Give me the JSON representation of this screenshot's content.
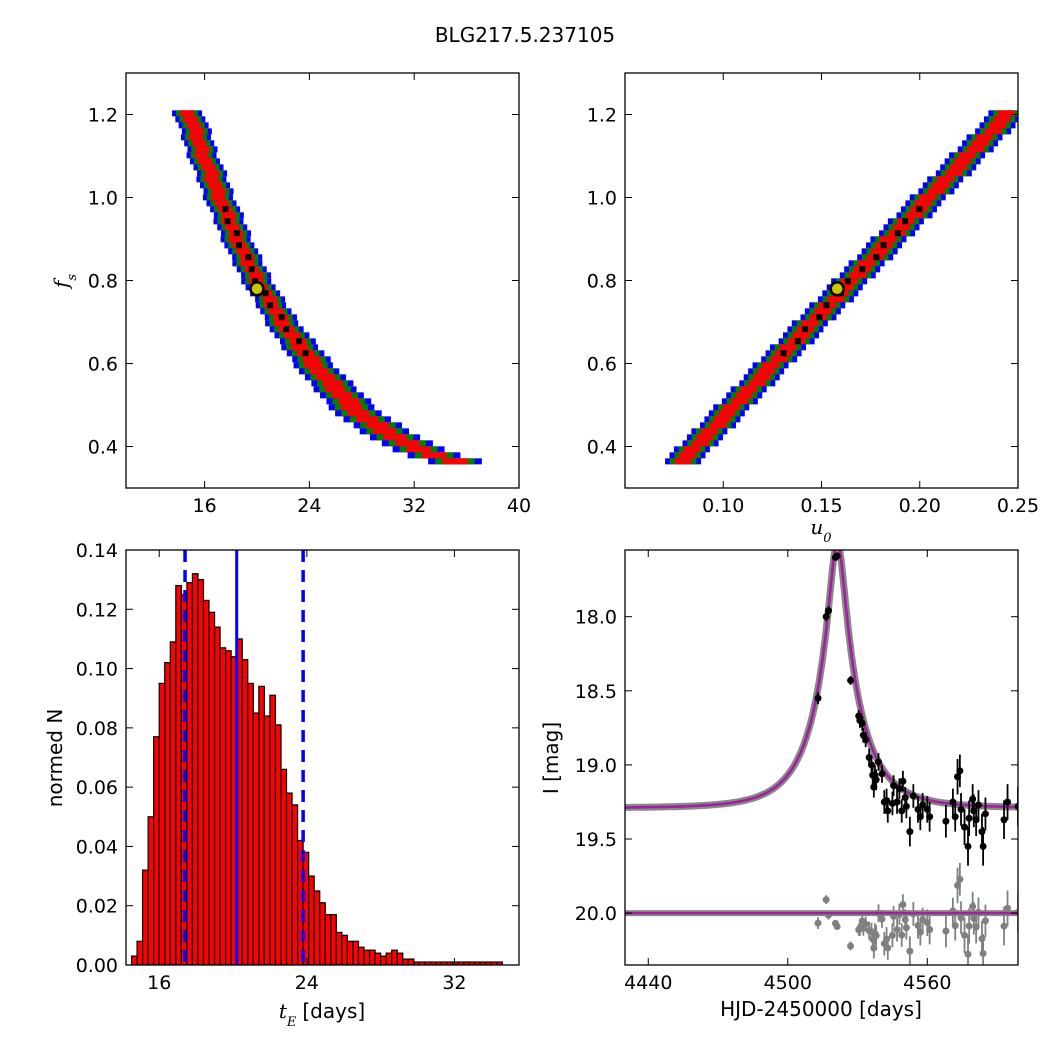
{
  "title": "BLG217.5.237105",
  "colors": {
    "blue": "#0000ff",
    "green": "#008000",
    "red": "#ff0000",
    "black": "#000000",
    "model": "#a020a0",
    "resid": "#808080",
    "marker_edge": "#000000",
    "marker_face": "#c8c800"
  },
  "chart_data": [
    {
      "id": "tE_vs_fs",
      "type": "heatmap",
      "xlim": [
        10,
        40
      ],
      "ylim": [
        0.3,
        1.3
      ],
      "xticks": [
        "16",
        "24",
        "32",
        "40"
      ],
      "xtick_values": [
        16,
        24,
        32,
        40
      ],
      "yticks": [
        "0.4",
        "0.6",
        "0.8",
        "1.0",
        "1.2"
      ],
      "ytick_values": [
        0.4,
        0.6,
        0.8,
        1.0,
        1.2
      ],
      "xlabel": "",
      "ylabel": "f_s",
      "best_fit": {
        "x": 20.0,
        "y": 0.78
      },
      "relation": {
        "curve": [
          [
            14.8,
            1.21
          ],
          [
            16.0,
            1.1
          ],
          [
            17.5,
            0.98
          ],
          [
            19.0,
            0.87
          ],
          [
            20.5,
            0.78
          ],
          [
            22.5,
            0.68
          ],
          [
            25.0,
            0.58
          ],
          [
            28.0,
            0.48
          ],
          [
            31.0,
            0.42
          ],
          [
            34.0,
            0.38
          ],
          [
            36.5,
            0.36
          ]
        ],
        "y_from": 0.36,
        "y_to": 1.21
      }
    },
    {
      "id": "u0_vs_fs",
      "type": "heatmap",
      "xlim": [
        0.05,
        0.25
      ],
      "ylim": [
        0.3,
        1.3
      ],
      "xticks": [
        "0.10",
        "0.15",
        "0.20",
        "0.25"
      ],
      "xtick_values": [
        0.1,
        0.15,
        0.2,
        0.25
      ],
      "yticks": [
        "0.4",
        "0.6",
        "0.8",
        "1.0",
        "1.2"
      ],
      "ytick_values": [
        0.4,
        0.6,
        0.8,
        1.0,
        1.2
      ],
      "xlabel": "u_0",
      "ylabel": "",
      "best_fit": {
        "x": 0.158,
        "y": 0.78
      },
      "relation": {
        "curve": [
          [
            0.077,
            0.36
          ],
          [
            0.245,
            1.21
          ]
        ],
        "y_from": 0.36,
        "y_to": 1.21
      }
    },
    {
      "id": "tE_histogram",
      "type": "bar",
      "xlim": [
        14.2,
        35.5
      ],
      "ylim": [
        0,
        0.14
      ],
      "xticks": [
        "16",
        "24",
        "32"
      ],
      "xtick_values": [
        16,
        24,
        32
      ],
      "yticks": [
        "0.00",
        "0.02",
        "0.04",
        "0.06",
        "0.08",
        "0.10",
        "0.12",
        "0.14"
      ],
      "ytick_values": [
        0,
        0.02,
        0.04,
        0.06,
        0.08,
        0.1,
        0.12,
        0.14
      ],
      "xlabel": "t_E",
      "xlabel_unit": "[days]",
      "ylabel": "normed N",
      "bin_start": 14.5,
      "bin_width": 0.3,
      "values": [
        0.003,
        0.008,
        0.032,
        0.05,
        0.077,
        0.095,
        0.102,
        0.109,
        0.128,
        0.125,
        0.129,
        0.132,
        0.13,
        0.123,
        0.119,
        0.114,
        0.107,
        0.106,
        0.104,
        0.11,
        0.103,
        0.095,
        0.085,
        0.094,
        0.084,
        0.091,
        0.081,
        0.066,
        0.058,
        0.054,
        0.042,
        0.038,
        0.03,
        0.025,
        0.021,
        0.017,
        0.017,
        0.011,
        0.01,
        0.008,
        0.008,
        0.006,
        0.005,
        0.005,
        0.004,
        0.003,
        0.004,
        0.005,
        0.004,
        0.002,
        0.002,
        0.001,
        0.001,
        0.001,
        0.001,
        0.001,
        0.001,
        0.001,
        0.001,
        0.001,
        0.001,
        0.001,
        0.001,
        0.001,
        0.001,
        0.001,
        0.001
      ],
      "median": 20.2,
      "interval": [
        17.4,
        23.8
      ]
    },
    {
      "id": "light_curve",
      "type": "scatter",
      "xlim": [
        4430,
        4599
      ],
      "ylim": [
        20.35,
        17.55
      ],
      "xticks": [
        "4440",
        "4500",
        "4560"
      ],
      "xtick_values": [
        4440,
        4500,
        4560
      ],
      "yticks": [
        "18.0",
        "18.5",
        "19.0",
        "19.5",
        "20.0"
      ],
      "ytick_values": [
        18.0,
        18.5,
        19.0,
        19.5,
        20.0
      ],
      "xlabel": "HJD-2450000 [days]",
      "ylabel": "I [mag]",
      "model": {
        "t0": 4521.3,
        "u0": 0.158,
        "tE": 20.0,
        "fs": 0.78,
        "baseline": 19.29
      },
      "residual_offset": 20.0,
      "points": [
        [
          4513.0,
          18.55,
          0.04
        ],
        [
          4516.5,
          18.0,
          0.03
        ],
        [
          4517.5,
          17.96,
          0.03
        ],
        [
          4520.5,
          17.6,
          0.02
        ],
        [
          4521.2,
          17.59,
          0.02
        ],
        [
          4527.0,
          18.43,
          0.03
        ],
        [
          4530.5,
          18.67,
          0.04
        ],
        [
          4531.0,
          18.7,
          0.05
        ],
        [
          4532.0,
          18.72,
          0.05
        ],
        [
          4532.5,
          18.8,
          0.05
        ],
        [
          4533.5,
          18.83,
          0.05
        ],
        [
          4535.0,
          18.95,
          0.06
        ],
        [
          4536.0,
          19.0,
          0.06
        ],
        [
          4536.5,
          19.07,
          0.07
        ],
        [
          4537.0,
          19.15,
          0.07
        ],
        [
          4537.5,
          19.07,
          0.07
        ],
        [
          4538.0,
          19.1,
          0.07
        ],
        [
          4539.0,
          18.98,
          0.06
        ],
        [
          4540.5,
          19.06,
          0.06
        ],
        [
          4541.5,
          19.25,
          0.08
        ],
        [
          4542.5,
          19.24,
          0.08
        ],
        [
          4543.0,
          19.31,
          0.08
        ],
        [
          4545.0,
          19.26,
          0.08
        ],
        [
          4545.5,
          19.14,
          0.07
        ],
        [
          4547.0,
          19.25,
          0.08
        ],
        [
          4548.0,
          19.16,
          0.07
        ],
        [
          4549.0,
          19.31,
          0.08
        ],
        [
          4549.5,
          19.11,
          0.07
        ],
        [
          4550.5,
          19.22,
          0.07
        ],
        [
          4551.0,
          19.28,
          0.08
        ],
        [
          4552.5,
          19.45,
          0.1
        ],
        [
          4554.0,
          19.21,
          0.08
        ],
        [
          4556.0,
          19.3,
          0.09
        ],
        [
          4557.0,
          19.35,
          0.09
        ],
        [
          4558.0,
          19.27,
          0.08
        ],
        [
          4560.0,
          19.3,
          0.09
        ],
        [
          4561.0,
          19.35,
          0.1
        ],
        [
          4568.0,
          19.38,
          0.11
        ],
        [
          4571.0,
          19.25,
          0.09
        ],
        [
          4572.0,
          19.35,
          0.1
        ],
        [
          4573.0,
          19.08,
          0.12
        ],
        [
          4574.0,
          19.04,
          0.11
        ],
        [
          4574.5,
          19.3,
          0.11
        ],
        [
          4576.0,
          19.42,
          0.12
        ],
        [
          4577.5,
          19.55,
          0.13
        ],
        [
          4578.0,
          19.36,
          0.12
        ],
        [
          4579.5,
          19.23,
          0.1
        ],
        [
          4580.0,
          19.31,
          0.11
        ],
        [
          4581.0,
          19.37,
          0.11
        ],
        [
          4582.0,
          19.27,
          0.1
        ],
        [
          4583.5,
          19.45,
          0.12
        ],
        [
          4584.0,
          19.55,
          0.13
        ],
        [
          4585.0,
          19.33,
          0.11
        ],
        [
          4593.0,
          19.37,
          0.13
        ],
        [
          4594.5,
          19.25,
          0.12
        ],
        [
          4599.0,
          19.28,
          0.13
        ]
      ]
    }
  ]
}
